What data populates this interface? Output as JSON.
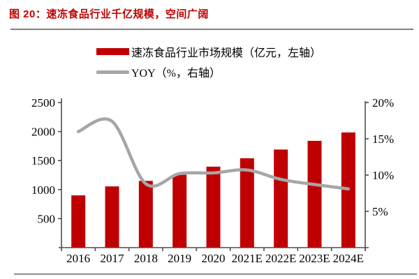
{
  "figure": {
    "title": "图 20：速冻食品行业千亿规模，空间广阔"
  },
  "colors": {
    "accent_red": "#C00000",
    "line_gray": "#A6A6A6",
    "axis_gray": "#4D4D4D",
    "rule_gray": "#808080"
  },
  "legend": [
    {
      "label": "速冻食品行业市场规模（亿元，左轴）",
      "marker": "bar-swatch"
    },
    {
      "label": "YOY（%，右轴）",
      "marker": "line-swatch"
    }
  ],
  "chart_data": {
    "type": "bar+line",
    "categories": [
      "2016",
      "2017",
      "2018",
      "2019",
      "2020",
      "2021E",
      "2022E",
      "2023E",
      "2024E"
    ],
    "series": [
      {
        "name": "速冻食品行业市场规模（亿元，左轴）",
        "type": "bar",
        "axis": "left",
        "color": "#C00000",
        "values": [
          900,
          1055,
          1150,
          1255,
          1395,
          1540,
          1690,
          1840,
          1985
        ]
      },
      {
        "name": "YOY（%，右轴）",
        "type": "line",
        "axis": "right",
        "color": "#A6A6A6",
        "values": [
          16.0,
          17.4,
          8.8,
          10.2,
          10.3,
          10.7,
          9.4,
          8.7,
          8.1
        ]
      }
    ],
    "left_axis": {
      "min": 0,
      "max": 2500,
      "tick_values": [
        500,
        1000,
        1500,
        2000,
        2500
      ],
      "tick_labels": [
        "500",
        "1000",
        "1500",
        "2000",
        "2500"
      ]
    },
    "right_axis": {
      "min": 0,
      "max": 20,
      "tick_values": [
        5,
        10,
        15,
        20
      ],
      "tick_labels": [
        "5%",
        "10%",
        "15%",
        "20%"
      ]
    },
    "grid": false,
    "legend_position": "top",
    "smooth_line": true
  }
}
